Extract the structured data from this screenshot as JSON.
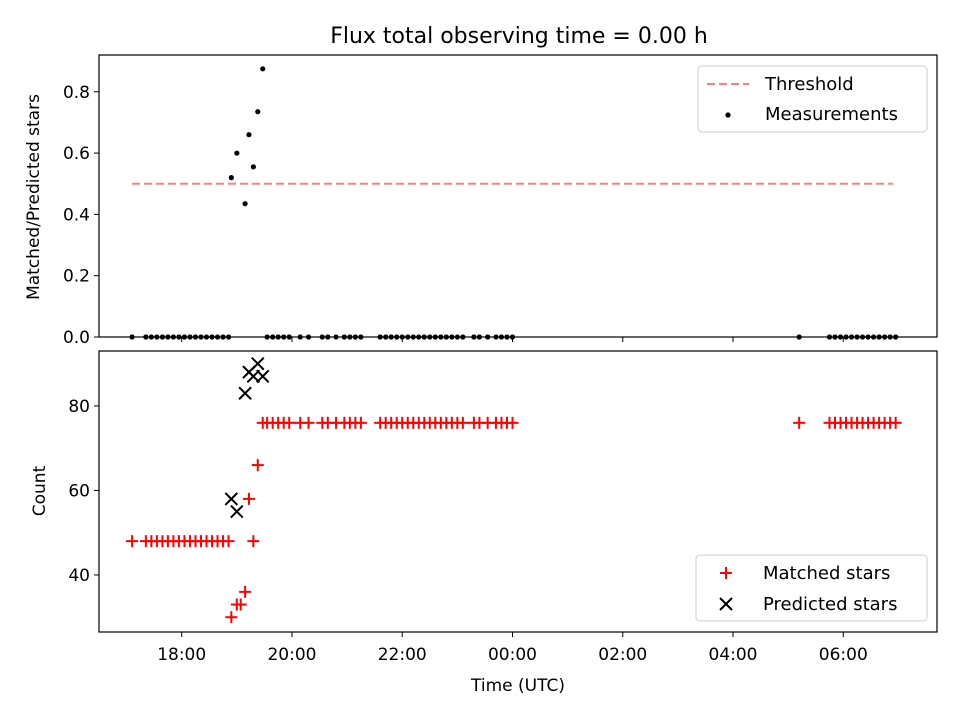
{
  "title": "Flux total observing time = 0.00 h",
  "colors": {
    "threshold": "#ff7f7f",
    "measurements": "#000000",
    "matched": "#ff0000",
    "predicted": "#000000"
  },
  "chart_data": [
    {
      "type": "scatter",
      "panel": "top",
      "ylabel": "Matched/Predicted stars",
      "xlim_hours": [
        16.5,
        31.7
      ],
      "ylim": [
        0,
        0.92
      ],
      "yticks": [
        0.0,
        0.2,
        0.4,
        0.6,
        0.8
      ],
      "ytick_labels": [
        "0.0",
        "0.2",
        "0.4",
        "0.6",
        "0.8"
      ],
      "legend_position": "top-right",
      "legend": [
        {
          "label": "Threshold",
          "marker": "dashed-line"
        },
        {
          "label": "Measurements",
          "marker": "dot"
        }
      ],
      "threshold": {
        "name": "Threshold",
        "y": 0.5,
        "x_start": 17.1,
        "x_end": 30.9
      },
      "series": [
        {
          "name": "Measurements",
          "points": [
            [
              17.1,
              0
            ],
            [
              17.35,
              0
            ],
            [
              17.45,
              0
            ],
            [
              17.55,
              0
            ],
            [
              17.65,
              0
            ],
            [
              17.75,
              0
            ],
            [
              17.85,
              0
            ],
            [
              17.95,
              0
            ],
            [
              18.05,
              0
            ],
            [
              18.15,
              0
            ],
            [
              18.25,
              0
            ],
            [
              18.35,
              0
            ],
            [
              18.45,
              0
            ],
            [
              18.55,
              0
            ],
            [
              18.65,
              0
            ],
            [
              18.75,
              0
            ],
            [
              18.85,
              0
            ],
            [
              18.9,
              0.52
            ],
            [
              19.0,
              0.6
            ],
            [
              19.15,
              0.435
            ],
            [
              19.22,
              0.66
            ],
            [
              19.3,
              0.555
            ],
            [
              19.38,
              0.735
            ],
            [
              19.47,
              0.875
            ],
            [
              19.55,
              0
            ],
            [
              19.65,
              0
            ],
            [
              19.75,
              0
            ],
            [
              19.85,
              0
            ],
            [
              19.95,
              0
            ],
            [
              20.15,
              0
            ],
            [
              20.3,
              0
            ],
            [
              20.55,
              0
            ],
            [
              20.65,
              0
            ],
            [
              20.8,
              0
            ],
            [
              20.95,
              0
            ],
            [
              21.05,
              0
            ],
            [
              21.15,
              0
            ],
            [
              21.25,
              0
            ],
            [
              21.6,
              0
            ],
            [
              21.7,
              0
            ],
            [
              21.8,
              0
            ],
            [
              21.9,
              0
            ],
            [
              22.0,
              0
            ],
            [
              22.1,
              0
            ],
            [
              22.2,
              0
            ],
            [
              22.3,
              0
            ],
            [
              22.4,
              0
            ],
            [
              22.5,
              0
            ],
            [
              22.6,
              0
            ],
            [
              22.7,
              0
            ],
            [
              22.8,
              0
            ],
            [
              22.9,
              0
            ],
            [
              23.0,
              0
            ],
            [
              23.1,
              0
            ],
            [
              23.3,
              0
            ],
            [
              23.4,
              0
            ],
            [
              23.55,
              0
            ],
            [
              23.7,
              0
            ],
            [
              23.8,
              0
            ],
            [
              23.9,
              0
            ],
            [
              24.0,
              0
            ],
            [
              29.2,
              0
            ],
            [
              29.75,
              0
            ],
            [
              29.85,
              0
            ],
            [
              29.95,
              0
            ],
            [
              30.05,
              0
            ],
            [
              30.15,
              0
            ],
            [
              30.25,
              0
            ],
            [
              30.35,
              0
            ],
            [
              30.45,
              0
            ],
            [
              30.55,
              0
            ],
            [
              30.65,
              0
            ],
            [
              30.75,
              0
            ],
            [
              30.85,
              0
            ],
            [
              30.95,
              0
            ]
          ]
        }
      ]
    },
    {
      "type": "scatter",
      "panel": "bottom",
      "xlabel": "Time (UTC)",
      "ylabel": "Count",
      "xlim_hours": [
        16.5,
        31.7
      ],
      "xticks_hours": [
        18,
        20,
        22,
        24,
        26,
        28,
        30
      ],
      "xtick_labels": [
        "18:00",
        "20:00",
        "22:00",
        "00:00",
        "02:00",
        "04:00",
        "06:00"
      ],
      "ylim": [
        26.5,
        93
      ],
      "yticks": [
        40,
        60,
        80
      ],
      "ytick_labels": [
        "40",
        "60",
        "80"
      ],
      "legend_position": "bottom-right",
      "legend": [
        {
          "label": "Matched stars",
          "marker": "plus"
        },
        {
          "label": "Predicted stars",
          "marker": "x"
        }
      ],
      "series": [
        {
          "name": "Matched stars",
          "marker": "plus",
          "points": [
            [
              17.1,
              48
            ],
            [
              17.35,
              48
            ],
            [
              17.45,
              48
            ],
            [
              17.55,
              48
            ],
            [
              17.65,
              48
            ],
            [
              17.75,
              48
            ],
            [
              17.85,
              48
            ],
            [
              17.95,
              48
            ],
            [
              18.05,
              48
            ],
            [
              18.15,
              48
            ],
            [
              18.25,
              48
            ],
            [
              18.35,
              48
            ],
            [
              18.45,
              48
            ],
            [
              18.55,
              48
            ],
            [
              18.65,
              48
            ],
            [
              18.75,
              48
            ],
            [
              18.85,
              48
            ],
            [
              18.9,
              30
            ],
            [
              19.0,
              33
            ],
            [
              19.07,
              33
            ],
            [
              19.15,
              36
            ],
            [
              19.22,
              58
            ],
            [
              19.3,
              48
            ],
            [
              19.38,
              66
            ],
            [
              19.47,
              76
            ],
            [
              19.55,
              76
            ],
            [
              19.65,
              76
            ],
            [
              19.75,
              76
            ],
            [
              19.85,
              76
            ],
            [
              19.95,
              76
            ],
            [
              20.15,
              76
            ],
            [
              20.3,
              76
            ],
            [
              20.55,
              76
            ],
            [
              20.65,
              76
            ],
            [
              20.8,
              76
            ],
            [
              20.95,
              76
            ],
            [
              21.05,
              76
            ],
            [
              21.15,
              76
            ],
            [
              21.25,
              76
            ],
            [
              21.6,
              76
            ],
            [
              21.7,
              76
            ],
            [
              21.8,
              76
            ],
            [
              21.9,
              76
            ],
            [
              22.0,
              76
            ],
            [
              22.1,
              76
            ],
            [
              22.2,
              76
            ],
            [
              22.3,
              76
            ],
            [
              22.4,
              76
            ],
            [
              22.5,
              76
            ],
            [
              22.6,
              76
            ],
            [
              22.7,
              76
            ],
            [
              22.8,
              76
            ],
            [
              22.9,
              76
            ],
            [
              23.0,
              76
            ],
            [
              23.1,
              76
            ],
            [
              23.3,
              76
            ],
            [
              23.4,
              76
            ],
            [
              23.55,
              76
            ],
            [
              23.7,
              76
            ],
            [
              23.8,
              76
            ],
            [
              23.9,
              76
            ],
            [
              24.0,
              76
            ],
            [
              29.2,
              76
            ],
            [
              29.75,
              76
            ],
            [
              29.85,
              76
            ],
            [
              29.95,
              76
            ],
            [
              30.05,
              76
            ],
            [
              30.15,
              76
            ],
            [
              30.25,
              76
            ],
            [
              30.35,
              76
            ],
            [
              30.45,
              76
            ],
            [
              30.55,
              76
            ],
            [
              30.65,
              76
            ],
            [
              30.75,
              76
            ],
            [
              30.85,
              76
            ],
            [
              30.95,
              76
            ]
          ]
        },
        {
          "name": "Predicted stars",
          "marker": "x",
          "points": [
            [
              18.9,
              58
            ],
            [
              19.0,
              55
            ],
            [
              19.15,
              83
            ],
            [
              19.22,
              88
            ],
            [
              19.3,
              87
            ],
            [
              19.38,
              90
            ],
            [
              19.47,
              87
            ]
          ]
        }
      ]
    }
  ]
}
